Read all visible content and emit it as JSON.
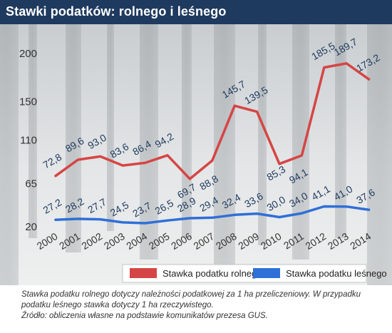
{
  "header": {
    "title": "Stawki podatków: rolnego i leśnego"
  },
  "notes": {
    "line1": "Stawka podatku rolnego dotyczy należności podatkowej za 1 ha przeliczeniowy. W przypadku",
    "line2": "podatku leśnego stawka dotyczy 1 ha rzeczywistego.",
    "line3": "Źródło: obliczenia własne na podstawie komunikatów prezesa GUS."
  },
  "colors": {
    "header_bg": "#1f3a5f",
    "rolny": "#d64545",
    "lesny": "#2f6fd8",
    "label_text": "#1f3a5f"
  },
  "chart_data": {
    "type": "line",
    "title": "Stawki podatków: rolnego i leśnego",
    "xlabel": "",
    "ylabel": "",
    "x": [
      "2000",
      "2001",
      "2002",
      "2003",
      "2004",
      "2005",
      "2006",
      "2007",
      "2008",
      "2009",
      "2010",
      "2011",
      "2012",
      "2013",
      "2014"
    ],
    "yticks": [
      20,
      65,
      110,
      150,
      200
    ],
    "ylim": [
      20,
      210
    ],
    "grid": false,
    "legend_position": "bottom",
    "series": [
      {
        "name": "Stawka podatku rolnego",
        "color": "#d64545",
        "values": [
          72.8,
          89.6,
          93.0,
          83.6,
          86.4,
          94.2,
          69.7,
          88.8,
          145.7,
          139.5,
          85.3,
          94.1,
          185.5,
          189.7,
          173.2
        ],
        "labels": [
          "72,8",
          "89,6",
          "93,0",
          "83,6",
          "86,4",
          "94,2",
          "69,7",
          "88,8",
          "145,7",
          "139,5",
          "85,3",
          "94,1",
          "185,5",
          "189,7",
          "173,2"
        ]
      },
      {
        "name": "Stawka podatku leśnego",
        "color": "#2f6fd8",
        "values": [
          27.2,
          28.2,
          27.7,
          24.5,
          23.7,
          26.5,
          28.9,
          29.4,
          32.4,
          33.6,
          30.0,
          34.0,
          41.1,
          41.0,
          37.6
        ],
        "labels": [
          "27,2",
          "28,2",
          "27,7",
          "24,5",
          "23,7",
          "26,5",
          "28,9",
          "29,4",
          "32,4",
          "33,6",
          "30,0",
          "34,0",
          "41,1",
          "41,0",
          "37,6"
        ]
      }
    ]
  }
}
